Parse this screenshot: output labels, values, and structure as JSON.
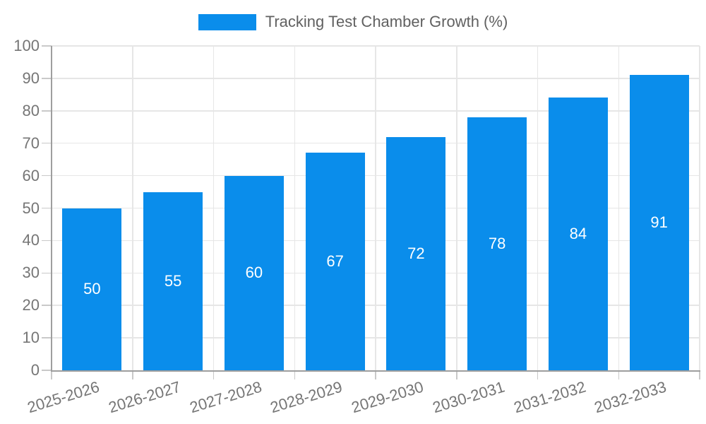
{
  "chart_data": {
    "type": "bar",
    "title": "Tracking Test Chamber Growth (%)",
    "categories": [
      "2025-2026",
      "2026-2027",
      "2027-2028",
      "2028-2029",
      "2029-2030",
      "2030-2031",
      "2031-2032",
      "2032-2033"
    ],
    "values": [
      50,
      55,
      60,
      67,
      72,
      78,
      84,
      91
    ],
    "xlabel": "",
    "ylabel": "",
    "ylim": [
      0,
      100
    ],
    "yticks": [
      0,
      10,
      20,
      30,
      40,
      50,
      60,
      70,
      80,
      90,
      100
    ],
    "grid": true,
    "legend_position": "top-center",
    "colors": {
      "bar": "#0a8deb",
      "value_label": "#ffffff",
      "axis_text": "#757575",
      "legend_text": "#616161",
      "grid_line": "#e6e6e6",
      "tick_line": "#c9c9c9",
      "axis_line": "#9e9e9e",
      "background": "#ffffff"
    }
  }
}
